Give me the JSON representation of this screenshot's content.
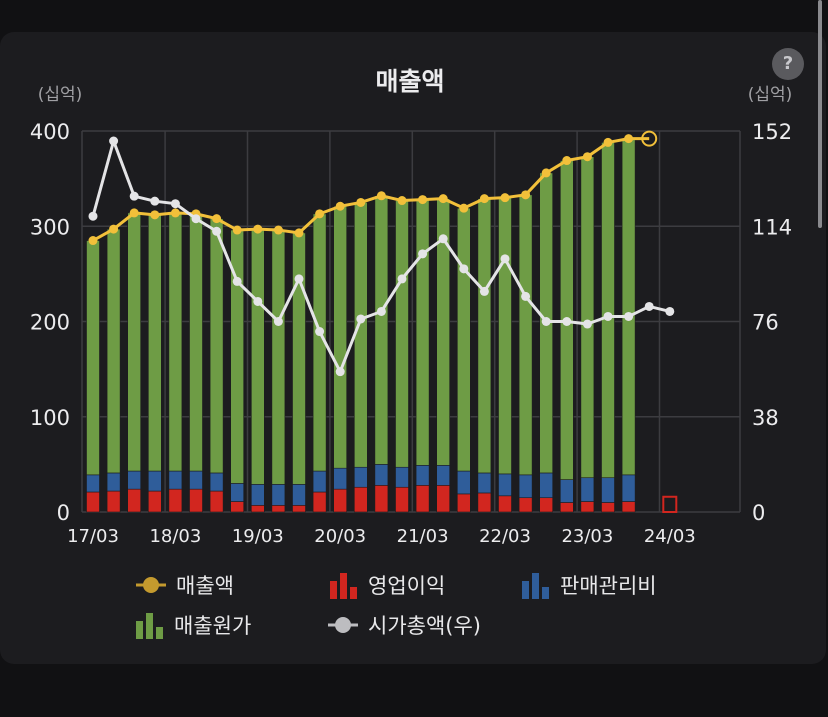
{
  "help": {
    "label": "?"
  },
  "chart_data": {
    "type": "bar",
    "title": "매출액",
    "y_left_unit": "(십억)",
    "y_right_unit": "(십억)",
    "y_left_ticks": [
      "400",
      "300",
      "200",
      "100",
      "0"
    ],
    "y_right_ticks": [
      "152",
      "114",
      "76",
      "38",
      "0"
    ],
    "ylim_left": [
      0,
      400
    ],
    "ylim_right": [
      0,
      152
    ],
    "grid": true,
    "x_tick_labels": [
      "17/03",
      "18/03",
      "19/03",
      "20/03",
      "21/03",
      "22/03",
      "23/03",
      "24/03"
    ],
    "quarters": [
      "17/03",
      "17/06",
      "17/09",
      "17/12",
      "18/03",
      "18/06",
      "18/09",
      "18/12",
      "19/03",
      "19/06",
      "19/09",
      "19/12",
      "20/03",
      "20/06",
      "20/09",
      "20/12",
      "21/03",
      "21/06",
      "21/09",
      "21/12",
      "22/03",
      "22/06",
      "22/09",
      "22/12",
      "23/03",
      "23/06",
      "23/09",
      "23/12",
      "24/03"
    ],
    "series": [
      {
        "name": "매출액",
        "kind": "line",
        "axis": "left",
        "color": "#f2c03a",
        "values": [
          285,
          297,
          314,
          312,
          314,
          313,
          308,
          296,
          297,
          296,
          293,
          313,
          321,
          325,
          332,
          327,
          328,
          329,
          319,
          329,
          330,
          333,
          356,
          369,
          373,
          388,
          392,
          392,
          null
        ]
      },
      {
        "name": "영업이익",
        "kind": "bar",
        "axis": "left",
        "color": "#d2261f",
        "values": [
          21,
          22,
          24,
          22,
          24,
          24,
          22,
          11,
          7,
          7,
          7,
          21,
          24,
          26,
          28,
          26,
          28,
          28,
          19,
          20,
          17,
          15,
          15,
          10,
          11,
          10,
          11,
          null,
          16
        ]
      },
      {
        "name": "판매관리비",
        "kind": "bar",
        "axis": "left",
        "color": "#2f5d9a",
        "values": [
          18,
          19,
          19,
          21,
          19,
          19,
          19,
          19,
          22,
          22,
          22,
          22,
          22,
          21,
          22,
          21,
          21,
          21,
          24,
          21,
          23,
          24,
          26,
          24,
          25,
          26,
          28,
          null,
          null
        ]
      },
      {
        "name": "매출원가",
        "kind": "bar",
        "axis": "left",
        "color": "#6e9c45",
        "values": [
          246,
          256,
          271,
          269,
          271,
          270,
          267,
          266,
          268,
          267,
          264,
          270,
          275,
          278,
          282,
          280,
          279,
          280,
          276,
          288,
          290,
          294,
          315,
          335,
          337,
          352,
          353,
          null,
          null
        ]
      },
      {
        "name": "시가총액(우)",
        "kind": "line",
        "axis": "right",
        "color": "#e4e4e6",
        "values": [
          118,
          148,
          126,
          124,
          123,
          117,
          112,
          92,
          84,
          76,
          93,
          72,
          56,
          77,
          80,
          93,
          103,
          109,
          97,
          88,
          101,
          86,
          76,
          76,
          75,
          78,
          78,
          82,
          80
        ]
      }
    ]
  }
}
